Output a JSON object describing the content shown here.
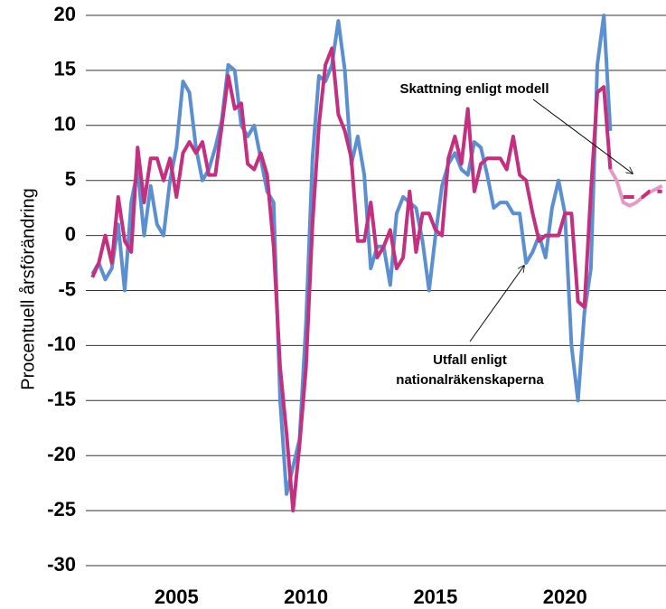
{
  "chart_data": {
    "type": "line",
    "ylabel": "Procentuell årsförändring",
    "xlim": [
      2001.5,
      2023.9
    ],
    "xticks": [
      2005,
      2010,
      2015,
      2020
    ],
    "ylim": [
      -30,
      20
    ],
    "yticks": [
      -30,
      -25,
      -20,
      -15,
      -10,
      -5,
      0,
      5,
      10,
      15,
      20
    ],
    "grid": true,
    "x": [
      2001.75,
      2002,
      2002.25,
      2002.5,
      2002.75,
      2003,
      2003.25,
      2003.5,
      2003.75,
      2004,
      2004.25,
      2004.5,
      2004.75,
      2005,
      2005.25,
      2005.5,
      2005.75,
      2006,
      2006.25,
      2006.5,
      2006.75,
      2007,
      2007.25,
      2007.5,
      2007.75,
      2008,
      2008.25,
      2008.5,
      2008.75,
      2009,
      2009.25,
      2009.5,
      2009.75,
      2010,
      2010.25,
      2010.5,
      2010.75,
      2011,
      2011.25,
      2011.5,
      2011.75,
      2012,
      2012.25,
      2012.5,
      2012.75,
      2013,
      2013.25,
      2013.5,
      2013.75,
      2014,
      2014.25,
      2014.5,
      2014.75,
      2015,
      2015.25,
      2015.5,
      2015.75,
      2016,
      2016.25,
      2016.5,
      2016.75,
      2017,
      2017.25,
      2017.5,
      2017.75,
      2018,
      2018.25,
      2018.5,
      2018.75,
      2019,
      2019.25,
      2019.5,
      2019.75,
      2020,
      2020.25,
      2020.5,
      2020.75,
      2021,
      2021.25,
      2021.5,
      2021.75
    ],
    "series": [
      {
        "name": "Utfall enligt nationalräkenskaperna",
        "color": "#5b8fcf",
        "values": [
          -3.5,
          -2.5,
          -4,
          -3,
          1,
          -5,
          3,
          6,
          0,
          4.5,
          1,
          0,
          5,
          8,
          14,
          13,
          8,
          5,
          6,
          8,
          10.5,
          15.5,
          15,
          10,
          9,
          10,
          7,
          4,
          3,
          -15,
          -23.5,
          -21,
          -18.5,
          -8,
          7,
          14.5,
          14,
          15.5,
          19.5,
          15,
          6.5,
          9,
          5.5,
          -3,
          -1,
          -1,
          -4.5,
          2,
          3.5,
          3,
          2.5,
          -0.5,
          -5,
          0,
          4.5,
          6.5,
          7.5,
          6,
          5.5,
          8.5,
          8,
          5.5,
          2.5,
          3,
          3,
          2,
          2,
          -2.5,
          -1.5,
          0,
          -2,
          2.5,
          5,
          2,
          -10,
          -15,
          -7,
          -3,
          15.5,
          20,
          9.5
        ]
      },
      {
        "name": "Skattning enligt modell",
        "color": "#c2307f",
        "values": [
          -3.8,
          -2.5,
          0,
          -2.5,
          3.5,
          -0.5,
          -1.5,
          8,
          3,
          7,
          7,
          5,
          7,
          3.5,
          7.5,
          8.5,
          7.5,
          8.5,
          5.5,
          5.5,
          10,
          14.5,
          11.5,
          12,
          6.5,
          6,
          7.5,
          5.5,
          -1,
          -12,
          -18,
          -25,
          -19,
          -12,
          1,
          10,
          15.5,
          17,
          11,
          9.5,
          7,
          -0.5,
          -0.5,
          3,
          -2,
          -1,
          0.5,
          -3,
          -2,
          4,
          -1.5,
          2,
          2,
          0.5,
          0,
          7,
          9,
          6.5,
          11.5,
          4,
          6.5,
          7,
          7,
          7,
          6,
          9,
          5.5,
          5,
          2,
          -0.5,
          0,
          0,
          0,
          2,
          2,
          -6,
          -6.5,
          4,
          13,
          13.5,
          6
        ]
      },
      {
        "color": "#e59ac6",
        "x": [
          2021.75,
          2022,
          2022.25,
          2022.5,
          2022.75,
          2023,
          2023.25,
          2023.5,
          2023.75
        ],
        "values": [
          6,
          5,
          3,
          2.7,
          3,
          3.5,
          3.9,
          4.2,
          4.5
        ]
      },
      {
        "color": "#c2307f",
        "linestyle": "dashed",
        "x": [
          2022.25,
          2022.5,
          2022.75,
          2023,
          2023.25,
          2023.5,
          2023.75
        ],
        "values": [
          3.5,
          3.5,
          3.5,
          3.5,
          4,
          4,
          4
        ]
      }
    ]
  }
}
